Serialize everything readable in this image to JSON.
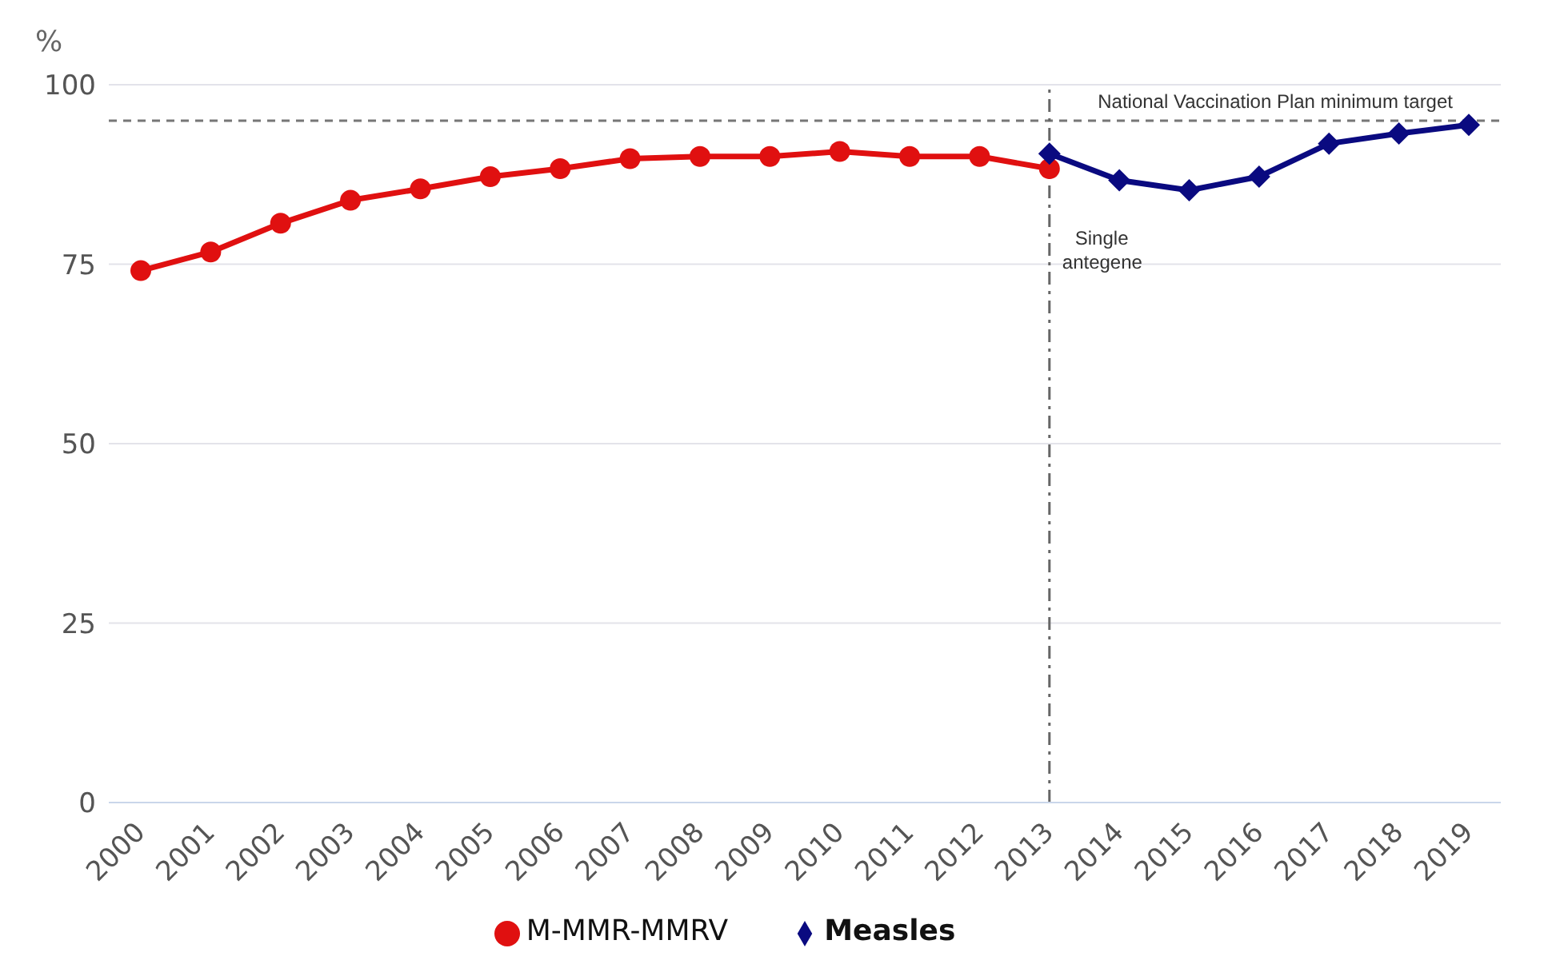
{
  "chart_data": {
    "type": "line",
    "ylabel": "%",
    "categories": [
      "2000",
      "2001",
      "2002",
      "2003",
      "2004",
      "2005",
      "2006",
      "2007",
      "2008",
      "2009",
      "2010",
      "2011",
      "2012",
      "2013",
      "2014",
      "2015",
      "2016",
      "2017",
      "2018",
      "2019"
    ],
    "series": [
      {
        "name": "M-MMR-MMRV",
        "color": "#e01010",
        "marker": "circle",
        "values": [
          74.1,
          76.7,
          80.7,
          83.9,
          85.5,
          87.2,
          88.3,
          89.7,
          90.0,
          90.0,
          90.7,
          90.0,
          90.0,
          88.3,
          null,
          null,
          null,
          null,
          null,
          null
        ]
      },
      {
        "name": "Measles",
        "color": "#0a0a80",
        "marker": "diamond",
        "values": [
          null,
          null,
          null,
          null,
          null,
          null,
          null,
          null,
          null,
          null,
          null,
          null,
          null,
          90.4,
          86.7,
          85.3,
          87.2,
          91.8,
          93.2,
          94.4
        ]
      }
    ],
    "ylim": [
      0,
      100
    ],
    "yticks": [
      0,
      25,
      50,
      75,
      100
    ],
    "grid": "y",
    "legend": "bottom",
    "ref_lines": [
      {
        "axis": "y",
        "value": 95,
        "label": "National Vaccination Plan minimum target",
        "color": "#777777",
        "line_style": "dashed"
      },
      {
        "axis": "x",
        "value": "2013",
        "label": "Single antegene",
        "color": "#666666",
        "line_style": "dashdot"
      }
    ]
  }
}
